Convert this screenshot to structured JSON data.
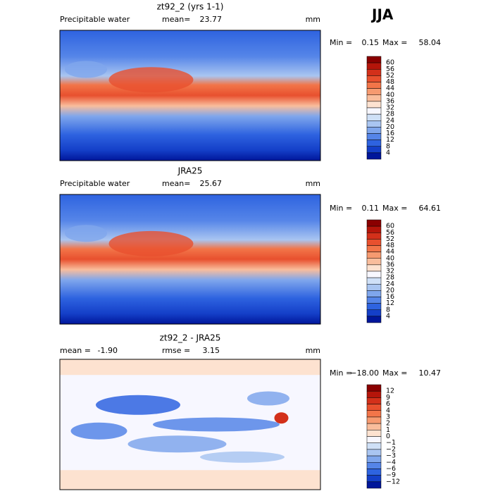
{
  "header": {
    "season": "JJA"
  },
  "colorbar_colors": [
    "#8a0000",
    "#b5150a",
    "#d3301a",
    "#e8502e",
    "#f27549",
    "#f69a70",
    "#f9bd9c",
    "#fde2d0",
    "#f7f7ff",
    "#cfe0f7",
    "#a9c5f1",
    "#7fa6ec",
    "#5585e8",
    "#2e63e0",
    "#143fc8",
    "#00169a"
  ],
  "panels": [
    {
      "title": "zt92_2 (yrs 1-1)",
      "field": "Precipitable water",
      "stats": [
        {
          "label": "mean=",
          "value": "23.77"
        }
      ],
      "units": "mm",
      "min_label": "Min =",
      "min_value": "0.15",
      "max_label": "Max =",
      "max_value": "58.04",
      "colorbar": [
        "60",
        "56",
        "52",
        "48",
        "44",
        "40",
        "36",
        "32",
        "28",
        "24",
        "20",
        "16",
        "12",
        "8",
        "4"
      ]
    },
    {
      "title": "JRA25",
      "field": "Precipitable water",
      "stats": [
        {
          "label": "mean=",
          "value": "25.67"
        }
      ],
      "units": "mm",
      "min_label": "Min =",
      "min_value": "0.11",
      "max_label": "Max =",
      "max_value": "64.61",
      "colorbar": [
        "60",
        "56",
        "52",
        "48",
        "44",
        "40",
        "36",
        "32",
        "28",
        "24",
        "20",
        "16",
        "12",
        "8",
        "4"
      ]
    },
    {
      "title": "zt92_2 - JRA25",
      "stats": [
        {
          "label": "mean =",
          "value": "-1.90"
        },
        {
          "label": "rmse =",
          "value": "3.15"
        }
      ],
      "units": "mm",
      "min_label": "Min =",
      "min_value": "−18.00",
      "max_label": "Max =",
      "max_value": "10.47",
      "colorbar": [
        "12",
        "9",
        "6",
        "4",
        "3",
        "2",
        "1",
        "0",
        "−1",
        "−2",
        "−3",
        "−4",
        "−6",
        "−9",
        "−12"
      ]
    }
  ]
}
